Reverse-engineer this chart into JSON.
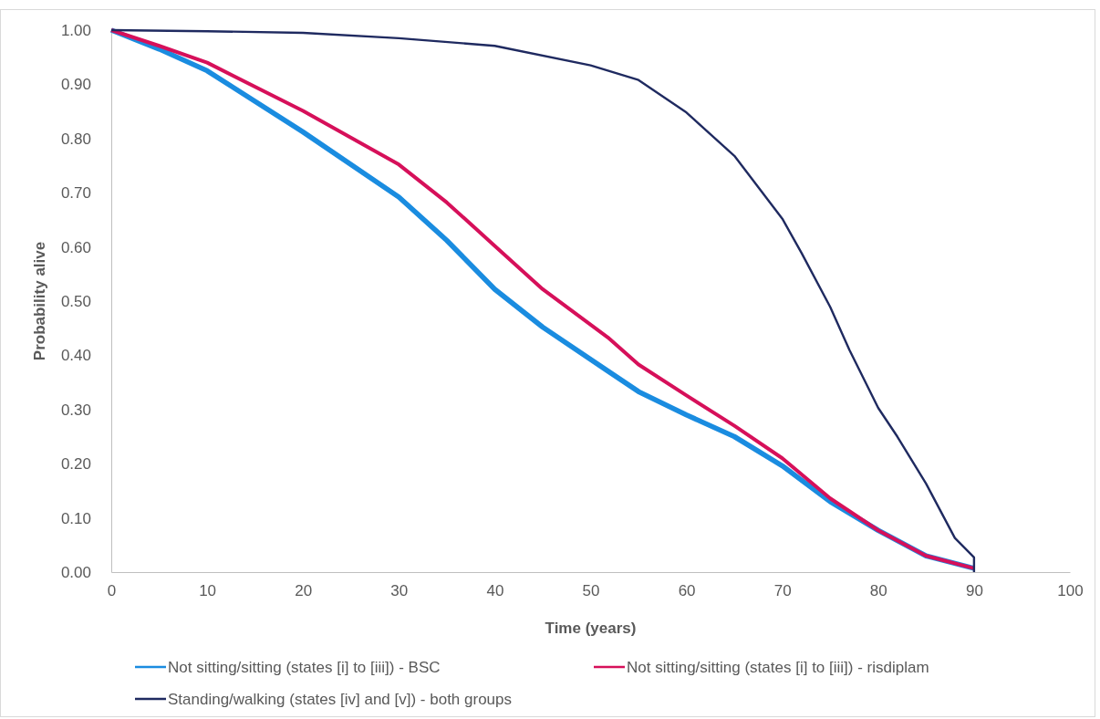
{
  "chart_data": {
    "type": "line",
    "xlabel": "Time (years)",
    "ylabel": "Probability alive",
    "xlim": [
      0,
      100
    ],
    "xticks": [
      0,
      10,
      20,
      30,
      40,
      50,
      60,
      70,
      80,
      90,
      100
    ],
    "ylim": [
      0,
      1
    ],
    "yticks": [
      {
        "value": 0,
        "label": "0.00"
      },
      {
        "value": 0.1,
        "label": "0.10"
      },
      {
        "value": 0.2,
        "label": "0.20"
      },
      {
        "value": 0.3,
        "label": "0.30"
      },
      {
        "value": 0.4,
        "label": "0.40"
      },
      {
        "value": 0.5,
        "label": "0.50"
      },
      {
        "value": 0.6,
        "label": "0.60"
      },
      {
        "value": 0.7,
        "label": "0.70"
      },
      {
        "value": 0.8,
        "label": "0.80"
      },
      {
        "value": 0.9,
        "label": "0.90"
      },
      {
        "value": 1,
        "label": "1.00"
      }
    ],
    "grid": false,
    "legend": "bottom",
    "marker": "none",
    "line_style": "solid",
    "series": [
      {
        "name": "Not sitting/sitting (states [i] to [iii]) - BSC",
        "color": "#1a8ce0",
        "x": [
          0,
          5,
          10,
          20,
          30,
          35,
          40,
          45,
          51.8,
          55,
          60,
          65,
          70,
          75,
          80,
          85,
          90
        ],
        "values": [
          1,
          0.965,
          0.925,
          0.812,
          0.692,
          0.612,
          0.522,
          0.452,
          0.371,
          0.333,
          0.29,
          0.25,
          0.196,
          0.13,
          0.077,
          0.03,
          0.007
        ]
      },
      {
        "name": "Not sitting/sitting (states [i] to [iii]) - risdiplam",
        "color": "#d6105a",
        "x": [
          0,
          5,
          10,
          20,
          30,
          35,
          40,
          45,
          51.8,
          55,
          60,
          65,
          70,
          75,
          80,
          85,
          90
        ],
        "values": [
          1,
          0.971,
          0.94,
          0.851,
          0.752,
          0.682,
          0.602,
          0.522,
          0.433,
          0.383,
          0.326,
          0.27,
          0.21,
          0.136,
          0.077,
          0.03,
          0.007
        ]
      },
      {
        "name": "Standing/walking (states [iv] and [v]) - both groups",
        "color": "#1f2a60",
        "x": [
          0,
          10,
          20,
          30,
          40,
          50,
          55,
          60,
          65,
          70,
          72,
          75,
          77,
          80,
          82,
          85,
          88,
          90,
          90
        ],
        "values": [
          1,
          0.998,
          0.995,
          0.985,
          0.971,
          0.935,
          0.908,
          0.848,
          0.768,
          0.652,
          0.589,
          0.489,
          0.41,
          0.303,
          0.25,
          0.163,
          0.063,
          0.027,
          0
        ]
      }
    ]
  }
}
